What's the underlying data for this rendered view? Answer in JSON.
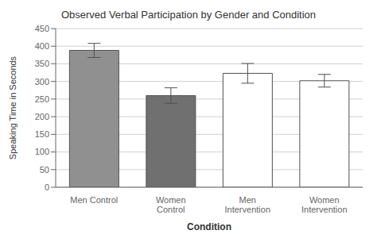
{
  "chart_data": {
    "type": "bar",
    "title": "Observed Verbal Participation by Gender and Condition",
    "xlabel": "Condition",
    "ylabel": "Speaking Time in Seconds",
    "categories": [
      "Men Control",
      "Women\nControl",
      "Men\nIntervention",
      "Women\nIntervention"
    ],
    "values": [
      388,
      260,
      323,
      302
    ],
    "errors": [
      20,
      22,
      28,
      18
    ],
    "ylim": [
      0,
      450
    ],
    "yticks": [
      0,
      50,
      100,
      150,
      200,
      250,
      300,
      350,
      400,
      450
    ],
    "colors": [
      "#909090",
      "#707070",
      "#ffffff",
      "#ffffff"
    ],
    "grid": true
  }
}
